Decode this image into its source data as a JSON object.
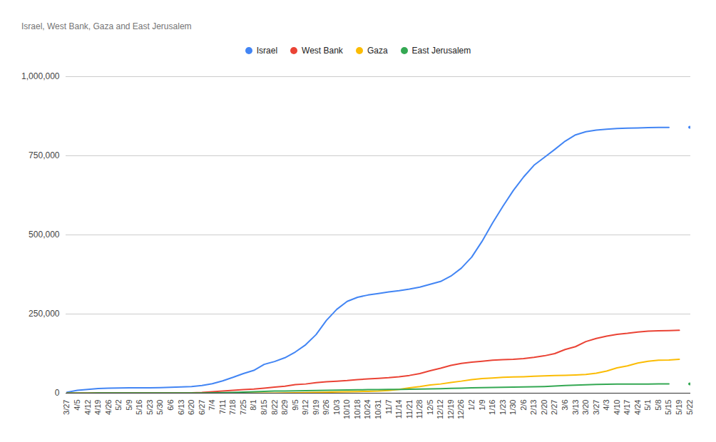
{
  "chart_data": {
    "type": "line",
    "title": "Israel, West Bank, Gaza and East Jerusalem",
    "x": [
      "3/27",
      "4/5",
      "4/12",
      "4/19",
      "4/26",
      "5/2",
      "5/9",
      "5/16",
      "5/23",
      "5/30",
      "6/6",
      "6/13",
      "6/20",
      "6/27",
      "7/4",
      "7/11",
      "7/18",
      "7/25",
      "8/1",
      "8/15",
      "8/22",
      "8/29",
      "9/5",
      "9/12",
      "9/19",
      "9/26",
      "10/3",
      "10/10",
      "10/18",
      "10/24",
      "10/31",
      "11/7",
      "11/14",
      "11/21",
      "11/28",
      "12/5",
      "12/12",
      "12/19",
      "12/26",
      "1/2",
      "1/9",
      "1/16",
      "1/23",
      "1/30",
      "2/6",
      "2/13",
      "2/20",
      "2/27",
      "3/6",
      "3/13",
      "3/20",
      "3/27",
      "4/3",
      "4/10",
      "4/17",
      "4/24",
      "5/1",
      "5/8",
      "5/15",
      "5/19",
      "5/22"
    ],
    "series": [
      {
        "name": "Israel",
        "color": "#4285f4",
        "values": [
          3000,
          9000,
          12000,
          14500,
          16000,
          16500,
          16700,
          17000,
          17000,
          17500,
          18500,
          19500,
          21000,
          24000,
          30000,
          39000,
          50000,
          62000,
          72000,
          91000,
          100000,
          112000,
          130000,
          153000,
          185000,
          230000,
          265000,
          290000,
          303000,
          310000,
          315000,
          320000,
          324000,
          329000,
          335000,
          344000,
          353000,
          370000,
          395000,
          430000,
          480000,
          537000,
          590000,
          640000,
          683000,
          720000,
          745000,
          770000,
          796000,
          816000,
          826000,
          831000,
          834000,
          836000,
          837000,
          838000,
          839000,
          839500,
          839800,
          null,
          840000
        ]
      },
      {
        "name": "West Bank",
        "color": "#ea4335",
        "values": [
          100,
          250,
          270,
          330,
          340,
          350,
          380,
          390,
          400,
          450,
          500,
          600,
          900,
          2000,
          4500,
          7000,
          9000,
          11000,
          13000,
          16000,
          19000,
          22000,
          27000,
          29000,
          33000,
          36000,
          38000,
          40000,
          43000,
          45000,
          47000,
          49000,
          52000,
          56000,
          62000,
          71000,
          79000,
          88000,
          94000,
          98000,
          101000,
          104000,
          106000,
          107000,
          109000,
          113000,
          118000,
          125000,
          138000,
          147000,
          163000,
          173000,
          180000,
          186000,
          189000,
          193000,
          196000,
          197000,
          197500,
          198500,
          null
        ]
      },
      {
        "name": "Gaza",
        "color": "#fbbc04",
        "values": [
          9,
          12,
          13,
          13,
          17,
          17,
          20,
          20,
          55,
          60,
          60,
          70,
          72,
          72,
          72,
          74,
          75,
          79,
          81,
          80,
          100,
          500,
          1200,
          1800,
          2200,
          3000,
          3800,
          4500,
          5000,
          5800,
          6500,
          8500,
          12000,
          17000,
          21000,
          26000,
          29000,
          34000,
          38000,
          43000,
          46000,
          48000,
          50000,
          51000,
          52000,
          53500,
          54500,
          55500,
          56500,
          57500,
          59000,
          63000,
          70000,
          80000,
          86000,
          95000,
          101000,
          104000,
          105000,
          107000,
          null
        ]
      },
      {
        "name": "East Jerusalem",
        "color": "#34a853",
        "values": [
          50,
          150,
          250,
          300,
          350,
          370,
          380,
          390,
          400,
          420,
          450,
          500,
          600,
          800,
          1000,
          1500,
          2500,
          3500,
          4500,
          5500,
          6500,
          7000,
          7500,
          8000,
          8500,
          9000,
          9500,
          10000,
          10500,
          11000,
          11300,
          11600,
          12000,
          12500,
          13000,
          13500,
          14000,
          15000,
          16000,
          17000,
          17500,
          18000,
          18500,
          19000,
          19500,
          20000,
          21000,
          22500,
          24000,
          25500,
          26500,
          27500,
          28000,
          28500,
          28700,
          28800,
          28900,
          29000,
          29100,
          null,
          29200
        ]
      }
    ],
    "ylim": [
      0,
      1000000
    ],
    "yticks": [
      0,
      {
        "value": 250000,
        "label": "250,000"
      },
      {
        "value": 500000,
        "label": "500,000"
      },
      {
        "value": 750000,
        "label": "750,000"
      },
      {
        "value": 1000000,
        "label": "1,000,000"
      }
    ],
    "grid": true,
    "legend": "top"
  }
}
